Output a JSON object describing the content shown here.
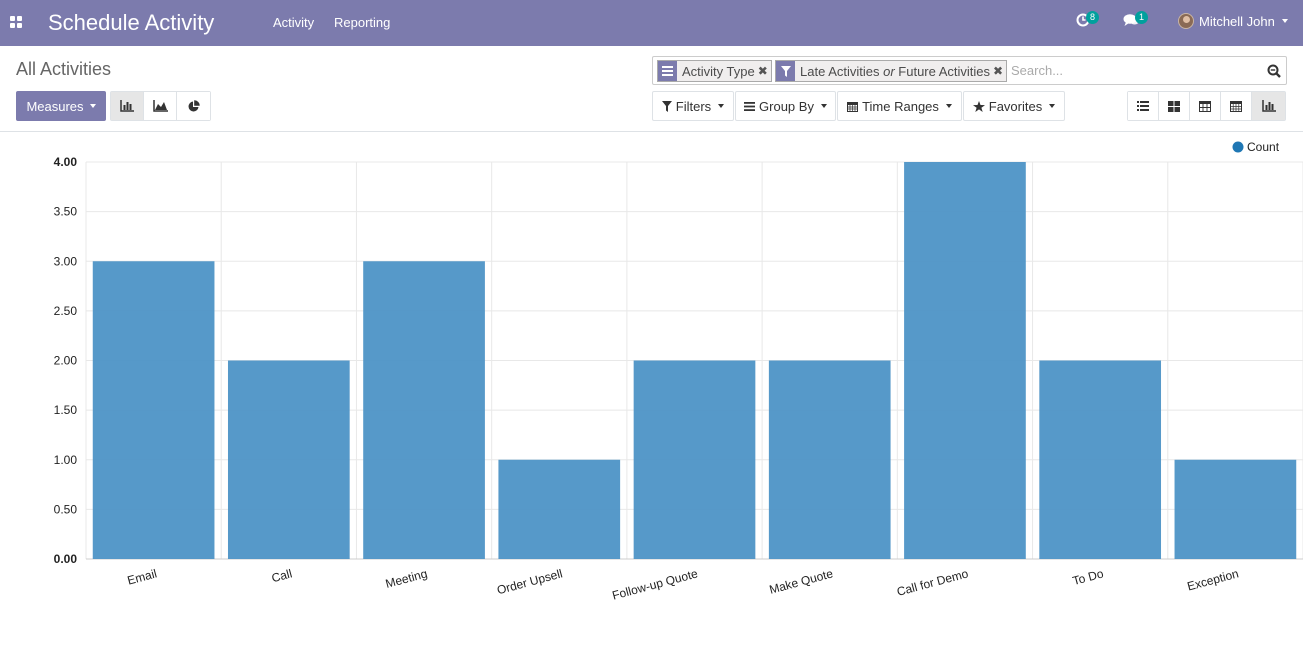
{
  "app": {
    "title": "Schedule Activity",
    "menu": [
      "Activity",
      "Reporting"
    ]
  },
  "systray": {
    "activity_count": "8",
    "message_count": "1",
    "user_name": "Mitchell John"
  },
  "control_panel": {
    "breadcrumb": "All Activities",
    "measures_label": "Measures",
    "facets": [
      {
        "icon": "list-icon",
        "parts": [
          {
            "text": "Activity Type",
            "italic": false
          }
        ]
      },
      {
        "icon": "filter-icon",
        "parts": [
          {
            "text": "Late Activities ",
            "italic": false
          },
          {
            "text": "or",
            "italic": true
          },
          {
            "text": " Future Activities",
            "italic": false
          }
        ]
      }
    ],
    "search_placeholder": "Search...",
    "filters_label": "Filters",
    "groupby_label": "Group By",
    "timeranges_label": "Time Ranges",
    "favorites_label": "Favorites"
  },
  "colors": {
    "navbar": "#7c7bad",
    "bar": "#4d93c6",
    "badge": "#00a09d"
  },
  "chart_data": {
    "type": "bar",
    "categories": [
      "Email",
      "Call",
      "Meeting",
      "Order Upsell",
      "Follow-up Quote",
      "Make Quote",
      "Call for Demo",
      "To Do",
      "Exception"
    ],
    "series": [
      {
        "name": "Count",
        "values": [
          3,
          2,
          3,
          1,
          2,
          2,
          4,
          2,
          1
        ]
      }
    ],
    "yticks": [
      "0.00",
      "0.50",
      "1.00",
      "1.50",
      "2.00",
      "2.50",
      "3.00",
      "3.50",
      "4.00"
    ],
    "ylim": [
      0,
      4
    ],
    "grid": true,
    "legend": "top-right"
  }
}
